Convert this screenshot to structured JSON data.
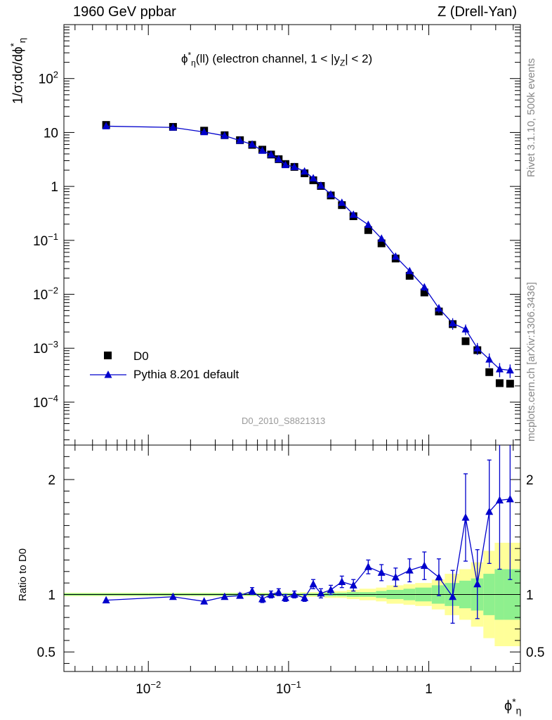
{
  "header": {
    "left": "1960 GeV ppbar",
    "right": "Z (Drell-Yan)"
  },
  "side_labels": {
    "rivet": "Rivet 3.1.10,  500k events",
    "mcplots": "mcplots.cern.ch [arXiv:1306.3436]"
  },
  "subtitle": "ϕ*η(ll) (electron channel, 1 < |yZ| < 2)",
  "watermark": "D0_2010_S8821313",
  "legend": {
    "data_label": "D0",
    "mc_label": "Pythia 8.201 default"
  },
  "axes": {
    "ylabel_main": "1/σ;dσ/dϕ*η",
    "ylabel_ratio": "Ratio to D0",
    "xlabel": "ϕ*η"
  },
  "colors": {
    "data": "#000000",
    "mc": "#0000cc",
    "band_inner": "#8ef08e",
    "band_outer": "#ffff99"
  },
  "chart_data": [
    {
      "type": "scatter",
      "panel": "main",
      "xscale": "log",
      "yscale": "log",
      "xlim": [
        0.0025,
        4.5
      ],
      "ylim": [
        1.6e-05,
        1000
      ],
      "yticks": [
        0.0001,
        0.001,
        0.01,
        0.1,
        1,
        10,
        100
      ],
      "ytick_labels": [
        "10^-4",
        "10^-3",
        "10^-2",
        "10^-1",
        "1",
        "10",
        "10^2"
      ],
      "xticks": [
        0.01,
        0.1,
        1
      ],
      "xtick_labels": [
        "10^-2",
        "10^-1",
        "1"
      ],
      "series": [
        {
          "name": "D0",
          "marker": "square",
          "x": [
            0.005,
            0.015,
            0.025,
            0.035,
            0.045,
            0.055,
            0.065,
            0.075,
            0.085,
            0.095,
            0.11,
            0.13,
            0.15,
            0.17,
            0.2,
            0.24,
            0.29,
            0.37,
            0.46,
            0.58,
            0.73,
            0.93,
            1.18,
            1.48,
            1.83,
            2.22,
            2.7,
            3.2,
            3.8
          ],
          "y": [
            13.8,
            12.7,
            10.8,
            8.9,
            7.2,
            5.9,
            4.8,
            3.9,
            3.2,
            2.6,
            2.3,
            1.75,
            1.3,
            1.02,
            0.68,
            0.45,
            0.28,
            0.155,
            0.088,
            0.046,
            0.022,
            0.0108,
            0.0048,
            0.0028,
            0.00135,
            0.00092,
            0.00036,
            0.000225,
            0.00022
          ]
        },
        {
          "name": "Pythia 8.201 default",
          "marker": "triangle",
          "x": [
            0.005,
            0.015,
            0.025,
            0.035,
            0.045,
            0.055,
            0.065,
            0.075,
            0.085,
            0.095,
            0.11,
            0.13,
            0.15,
            0.17,
            0.2,
            0.24,
            0.29,
            0.37,
            0.46,
            0.58,
            0.73,
            0.93,
            1.18,
            1.48,
            1.83,
            2.22,
            2.7,
            3.2,
            3.8
          ],
          "y": [
            13.1,
            12.4,
            10.2,
            8.7,
            7.1,
            6.0,
            4.6,
            3.9,
            3.2,
            2.5,
            2.3,
            1.9,
            1.42,
            1.04,
            0.71,
            0.5,
            0.3,
            0.195,
            0.108,
            0.05,
            0.027,
            0.0135,
            0.0055,
            0.0029,
            0.00225,
            0.001,
            0.00062,
            0.00041,
            0.00039
          ],
          "yerr": [
            0,
            0,
            0,
            0,
            0,
            0,
            0,
            0,
            0,
            0,
            0,
            0,
            0,
            0,
            0,
            0,
            0,
            0,
            0,
            0,
            0.002,
            0.002,
            0.001,
            0.0007,
            0.0005,
            0.00025,
            0.00018,
            0.00012,
            0.00011
          ]
        }
      ]
    },
    {
      "type": "line",
      "panel": "ratio",
      "xscale": "log",
      "ylim": [
        0.33,
        2.3
      ],
      "yticks": [
        0.5,
        1,
        2
      ],
      "ytick_labels": [
        "0.5",
        "1",
        "2"
      ],
      "reference": 1,
      "x": [
        0.005,
        0.015,
        0.025,
        0.035,
        0.045,
        0.055,
        0.065,
        0.075,
        0.085,
        0.095,
        0.11,
        0.13,
        0.15,
        0.17,
        0.2,
        0.24,
        0.29,
        0.37,
        0.46,
        0.58,
        0.73,
        0.93,
        1.18,
        1.48,
        1.83,
        2.22,
        2.7,
        3.2,
        3.8
      ],
      "ratio": [
        0.95,
        0.98,
        0.94,
        0.98,
        0.99,
        1.03,
        0.96,
        1.0,
        1.02,
        0.97,
        1.0,
        0.97,
        1.09,
        1.01,
        1.04,
        1.11,
        1.08,
        1.24,
        1.19,
        1.15,
        1.21,
        1.25,
        1.15,
        0.98,
        1.67,
        1.09,
        1.72,
        1.82,
        1.83
      ],
      "ratio_err": [
        0,
        0,
        0,
        0,
        0.02,
        0.03,
        0.03,
        0.03,
        0.03,
        0.03,
        0.03,
        0.03,
        0.04,
        0.04,
        0.04,
        0.05,
        0.05,
        0.06,
        0.07,
        0.08,
        0.1,
        0.12,
        0.16,
        0.23,
        0.38,
        0.3,
        0.45,
        0.6,
        0.7
      ],
      "band_edges": [
        0.0025,
        0.01,
        0.02,
        0.03,
        0.04,
        0.05,
        0.06,
        0.07,
        0.08,
        0.09,
        0.1,
        0.12,
        0.14,
        0.16,
        0.18,
        0.22,
        0.26,
        0.32,
        0.42,
        0.5,
        0.66,
        0.8,
        1.05,
        1.3,
        1.65,
        2.0,
        2.45,
        2.95,
        3.45,
        4.5
      ],
      "band_inner_halfwidth": [
        0.01,
        0.01,
        0.01,
        0.01,
        0.01,
        0.01,
        0.01,
        0.01,
        0.01,
        0.01,
        0.01,
        0.01,
        0.01,
        0.01,
        0.015,
        0.015,
        0.02,
        0.02,
        0.03,
        0.04,
        0.05,
        0.06,
        0.08,
        0.1,
        0.12,
        0.14,
        0.18,
        0.22,
        0.22
      ],
      "band_outer_halfwidth": [
        0.015,
        0.015,
        0.015,
        0.015,
        0.015,
        0.015,
        0.015,
        0.015,
        0.015,
        0.015,
        0.015,
        0.02,
        0.02,
        0.02,
        0.03,
        0.03,
        0.04,
        0.05,
        0.06,
        0.08,
        0.09,
        0.1,
        0.13,
        0.18,
        0.22,
        0.28,
        0.38,
        0.45,
        0.45
      ]
    }
  ]
}
